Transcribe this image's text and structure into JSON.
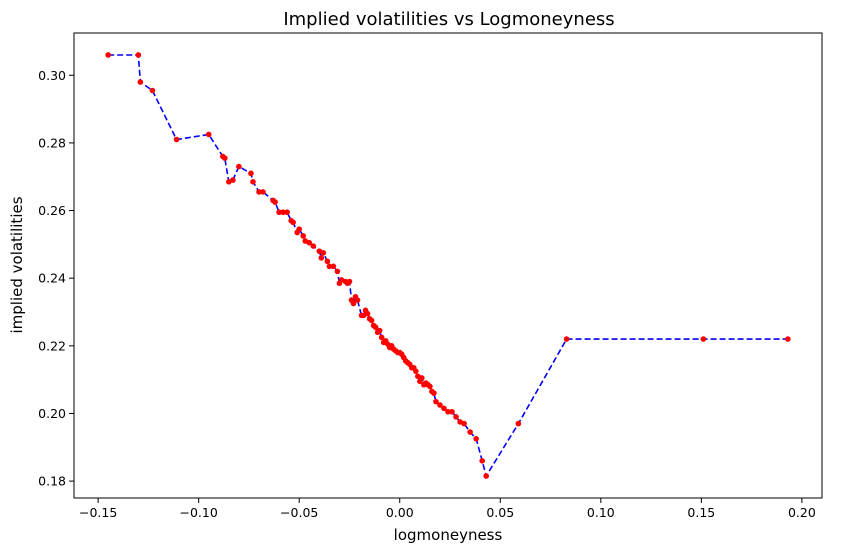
{
  "chart_data": {
    "type": "line",
    "title": "Implied volatilities vs Logmoneyness",
    "xlabel": "logmoneyness",
    "ylabel": "implied volatilities",
    "xlim": [
      -0.162,
      0.21
    ],
    "ylim": [
      0.175,
      0.3125
    ],
    "xticks": [
      -0.15,
      -0.1,
      -0.05,
      0.0,
      0.05,
      0.1,
      0.15,
      0.2
    ],
    "xtick_labels": [
      "−0.15",
      "−0.10",
      "−0.05",
      "0.00",
      "0.05",
      "0.10",
      "0.15",
      "0.20"
    ],
    "yticks": [
      0.18,
      0.2,
      0.22,
      0.24,
      0.26,
      0.28,
      0.3
    ],
    "ytick_labels": [
      "0.18",
      "0.20",
      "0.22",
      "0.24",
      "0.26",
      "0.28",
      "0.30"
    ],
    "grid": false,
    "line_color": "#0000ff",
    "line_style": "dashed",
    "marker_color": "#ff0000",
    "series": [
      {
        "x": [
          -0.145,
          -0.13,
          -0.129,
          -0.123,
          -0.111,
          -0.095,
          -0.088,
          -0.087,
          -0.085,
          -0.083,
          -0.08,
          -0.074,
          -0.073,
          -0.07,
          -0.068,
          -0.063,
          -0.062,
          -0.06,
          -0.058,
          -0.056,
          -0.054,
          -0.053,
          -0.051,
          -0.05,
          -0.048,
          -0.047,
          -0.045,
          -0.043,
          -0.04,
          -0.039,
          -0.038,
          -0.036,
          -0.035,
          -0.033,
          -0.031,
          -0.03,
          -0.029,
          -0.027,
          -0.026,
          -0.025,
          -0.024,
          -0.023,
          -0.022,
          -0.021,
          -0.019,
          -0.018,
          -0.017,
          -0.016,
          -0.015,
          -0.014,
          -0.013,
          -0.012,
          -0.011,
          -0.01,
          -0.009,
          -0.008,
          -0.007,
          -0.006,
          -0.005,
          -0.004,
          -0.003,
          -0.002,
          -0.001,
          0.0,
          0.001,
          0.002,
          0.003,
          0.004,
          0.005,
          0.006,
          0.007,
          0.008,
          0.009,
          0.01,
          0.011,
          0.012,
          0.013,
          0.014,
          0.015,
          0.016,
          0.017,
          0.018,
          0.02,
          0.022,
          0.024,
          0.026,
          0.028,
          0.03,
          0.032,
          0.035,
          0.038,
          0.041,
          0.043,
          0.059,
          0.083,
          0.151,
          0.193
        ],
        "y": [
          0.306,
          0.306,
          0.298,
          0.2955,
          0.281,
          0.2825,
          0.276,
          0.2755,
          0.2685,
          0.269,
          0.273,
          0.271,
          0.2685,
          0.2655,
          0.2655,
          0.263,
          0.2625,
          0.2595,
          0.2595,
          0.2595,
          0.257,
          0.2565,
          0.2535,
          0.2545,
          0.2525,
          0.251,
          0.2505,
          0.2495,
          0.248,
          0.246,
          0.2475,
          0.245,
          0.2435,
          0.2435,
          0.242,
          0.2385,
          0.2395,
          0.239,
          0.2385,
          0.239,
          0.2335,
          0.2325,
          0.2345,
          0.2335,
          0.229,
          0.229,
          0.2305,
          0.2295,
          0.228,
          0.2275,
          0.226,
          0.2255,
          0.224,
          0.2245,
          0.2225,
          0.221,
          0.2215,
          0.2205,
          0.2195,
          0.22,
          0.219,
          0.2185,
          0.218,
          0.218,
          0.2175,
          0.2165,
          0.2155,
          0.215,
          0.2145,
          0.2135,
          0.2135,
          0.2125,
          0.211,
          0.2095,
          0.2105,
          0.2085,
          0.209,
          0.2085,
          0.208,
          0.2065,
          0.206,
          0.2035,
          0.2025,
          0.2015,
          0.2005,
          0.2005,
          0.199,
          0.1975,
          0.197,
          0.1945,
          0.1925,
          0.186,
          0.1815,
          0.197,
          0.222,
          0.222,
          0.222
        ]
      }
    ]
  }
}
